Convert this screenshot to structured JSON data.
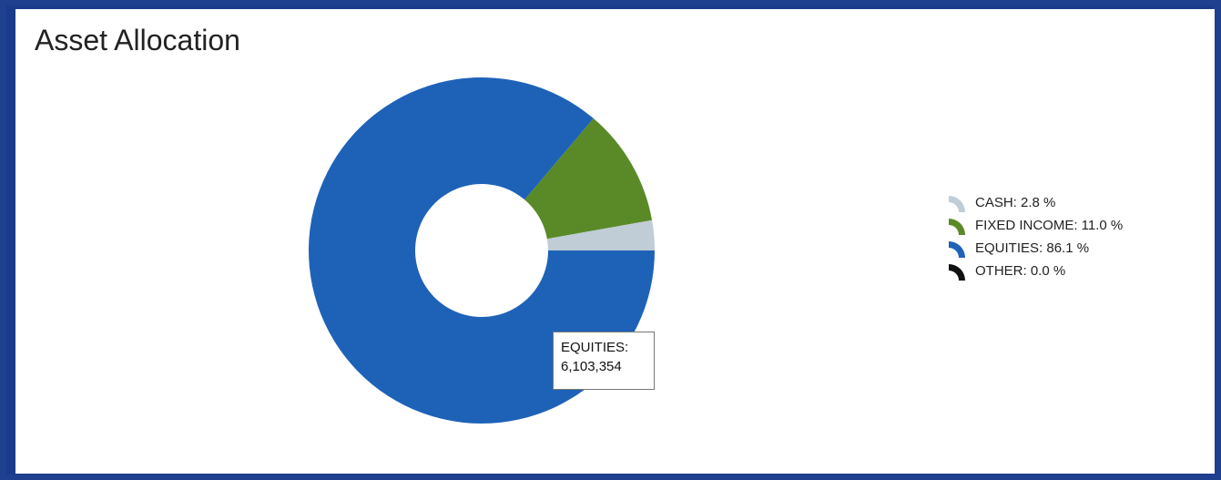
{
  "title": "Asset Allocation",
  "tooltip": {
    "line1": "EQUITIES:",
    "line2": "6,103,354"
  },
  "legend": [
    {
      "label": "CASH: 2.8 %",
      "color": "#c0ccd6"
    },
    {
      "label": "FIXED INCOME: 11.0 %",
      "color": "#5a8a28"
    },
    {
      "label": "EQUITIES: 86.1 %",
      "color": "#1e62b8"
    },
    {
      "label": "OTHER: 0.0 %",
      "color": "#111111"
    }
  ],
  "chart_data": {
    "type": "pie",
    "title": "Asset Allocation",
    "donut": true,
    "legend_position": "right",
    "categories": [
      "CASH",
      "FIXED INCOME",
      "EQUITIES",
      "OTHER"
    ],
    "values": [
      2.8,
      11.0,
      86.1,
      0.0
    ],
    "value_unit": "%",
    "colors": [
      "#c0ccd6",
      "#5a8a28",
      "#1e62b8",
      "#111111"
    ],
    "highlighted": {
      "category": "EQUITIES",
      "value": 6103354
    }
  }
}
